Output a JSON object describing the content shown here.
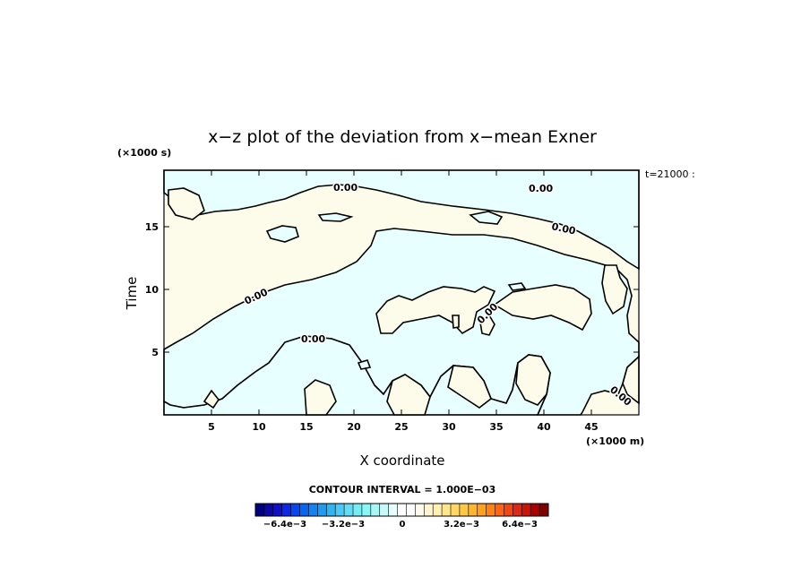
{
  "chart_data": {
    "type": "heatmap",
    "title": "x−z plot of the deviation from x−mean Exner",
    "xlabel": "X coordinate",
    "ylabel": "Time",
    "x_unit": "(×1000 m)",
    "y_unit": "(×1000 s)",
    "time_label": "t=21000 :",
    "xlim": [
      0,
      50
    ],
    "ylim": [
      0,
      19.5
    ],
    "x_ticks": [
      5,
      10,
      15,
      20,
      25,
      30,
      35,
      40,
      45
    ],
    "y_ticks": [
      5,
      10,
      15
    ],
    "contour_labels": [
      "0.00",
      "0.00",
      "0.00",
      "0.00",
      "0.00",
      "0.00",
      "0.00"
    ],
    "contour_interval_label": "CONTOUR INTERVAL = 1.000E−03",
    "colorbar": {
      "labels": [
        "−6.4e−3",
        "−3.2e−3",
        "0",
        "3.2e−3",
        "6.4e−3"
      ],
      "colors": [
        "#00007f",
        "#0a0aa0",
        "#1010c8",
        "#0a28e6",
        "#0a46f0",
        "#0a64f0",
        "#1482f0",
        "#1e9bf0",
        "#32b4f0",
        "#50c8f5",
        "#64dcf5",
        "#78ebf5",
        "#8cf5f5",
        "#aaf5f5",
        "#c8fafa",
        "#e6ffff",
        "#ffffff",
        "#ffffff",
        "#fffaeb",
        "#fff5d2",
        "#fff0b4",
        "#ffe68c",
        "#ffd764",
        "#ffc846",
        "#ffb432",
        "#ffa01e",
        "#ff8214",
        "#ff6414",
        "#f04614",
        "#dc2814",
        "#c8140a",
        "#aa0000",
        "#7f0000"
      ]
    },
    "fill_colors": {
      "negative": "#e8ffff",
      "positive": "#fdfbea"
    }
  }
}
